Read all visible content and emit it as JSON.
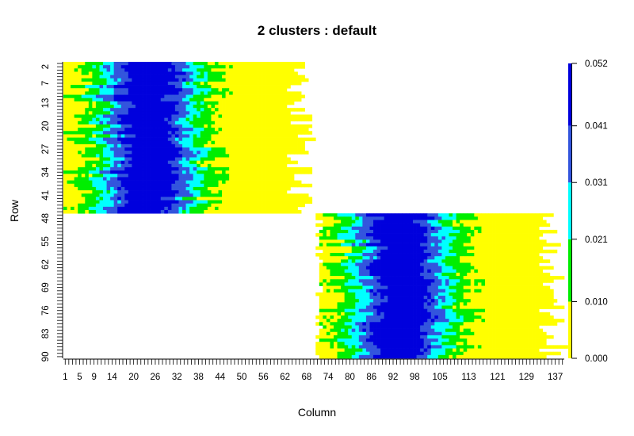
{
  "chart_data": {
    "type": "heatmap",
    "title": "2 clusters : default",
    "xlabel": "Column",
    "ylabel": "Row",
    "n_rows": 90,
    "n_cols": 139,
    "x_tick_labels": [
      "1",
      "5",
      "9",
      "14",
      "20",
      "26",
      "32",
      "38",
      "44",
      "50",
      "56",
      "62",
      "68",
      "74",
      "80",
      "86",
      "92",
      "98",
      "105",
      "113",
      "121",
      "129",
      "137"
    ],
    "y_tick_labels": [
      "2",
      "7",
      "13",
      "20",
      "27",
      "34",
      "41",
      "48",
      "55",
      "62",
      "69",
      "76",
      "83",
      "90"
    ],
    "color_breaks": [
      0.0,
      0.01,
      0.021,
      0.031,
      0.041,
      0.052
    ],
    "color_break_labels": [
      "0.000",
      "0.010",
      "0.021",
      "0.031",
      "0.041",
      "0.052"
    ],
    "colors": [
      "#ffff00",
      "#00ee00",
      "#00ffff",
      "#3355dd",
      "#0000dd"
    ],
    "clusters": [
      {
        "rows": [
          1,
          46
        ],
        "band_center_col": 24,
        "bar_end_col": 64
      },
      {
        "rows": [
          47,
          90
        ],
        "band_center_col": 94,
        "bar_end_col": 134
      }
    ],
    "background_color": "#ffffff"
  }
}
